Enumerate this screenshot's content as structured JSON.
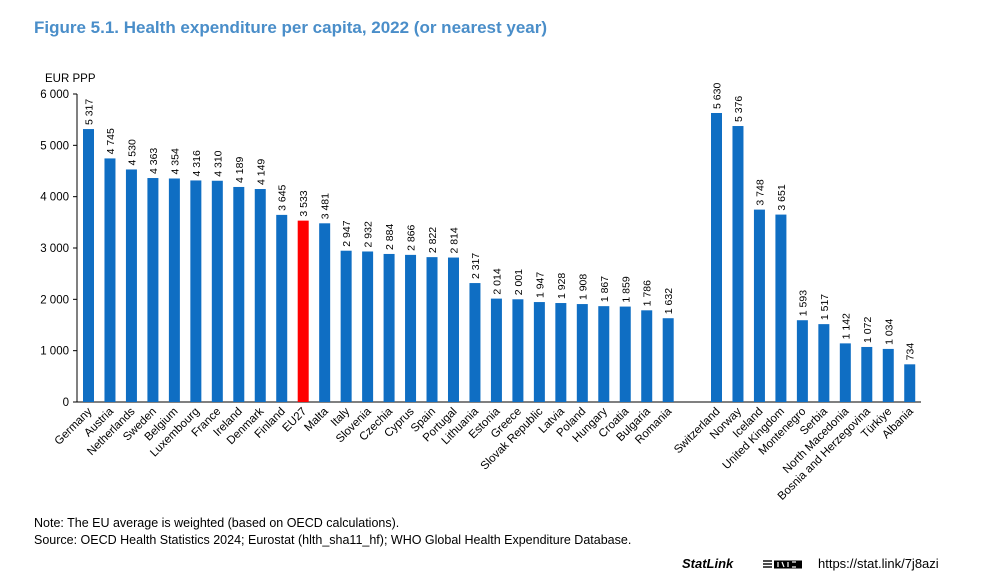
{
  "figure": {
    "title": "Figure 5.1. Health expenditure per capita, 2022 (or nearest year)",
    "note": "Note: The EU average is weighted (based on OECD calculations).",
    "source": "Source: OECD Health Statistics 2024; Eurostat (hlth_sha11_hf); WHO Global Health Expenditure Database.",
    "statlink_label": "StatLink",
    "statlink_url": "https://stat.link/7j8azi"
  },
  "chart_data": {
    "type": "bar",
    "title": "Figure 5.1. Health expenditure per capita, 2022 (or nearest year)",
    "ylabel": "EUR PPP",
    "ylim": [
      0,
      6000
    ],
    "yticks": [
      0,
      1000,
      2000,
      3000,
      4000,
      5000,
      6000
    ],
    "ytick_labels": [
      "0",
      "1 000",
      "2 000",
      "3 000",
      "4 000",
      "5 000",
      "6 000"
    ],
    "grid": false,
    "colors": {
      "bar": "#0f6ec3",
      "highlight": "#ff0000"
    },
    "highlight_category": "EU27",
    "groups": [
      {
        "categories": [
          "Germany",
          "Austria",
          "Netherlands",
          "Sweden",
          "Belgium",
          "Luxembourg",
          "France",
          "Ireland",
          "Denmark",
          "Finland",
          "EU27",
          "Malta",
          "Italy",
          "Slovenia",
          "Czechia",
          "Cyprus",
          "Spain",
          "Portugal",
          "Lithuania",
          "Estonia",
          "Greece",
          "Slovak Republic",
          "Latvia",
          "Poland",
          "Hungary",
          "Croatia",
          "Bulgaria",
          "Romania"
        ],
        "values": [
          5317,
          4745,
          4530,
          4363,
          4354,
          4316,
          4310,
          4189,
          4149,
          3645,
          3533,
          3481,
          2947,
          2932,
          2884,
          2866,
          2822,
          2814,
          2317,
          2014,
          2001,
          1947,
          1928,
          1908,
          1867,
          1859,
          1786,
          1632
        ],
        "labels": [
          "5 317",
          "4 745",
          "4 530",
          "4 363",
          "4 354",
          "4 316",
          "4 310",
          "4 189",
          "4 149",
          "3 645",
          "3 533",
          "3 481",
          "2 947",
          "2 932",
          "2 884",
          "2 866",
          "2 822",
          "2 814",
          "2 317",
          "2 014",
          "2 001",
          "1 947",
          "1 928",
          "1 908",
          "1 867",
          "1 859",
          "1 786",
          "1 632"
        ]
      },
      {
        "categories": [
          "Switzerland",
          "Norway",
          "Iceland",
          "United Kingdom",
          "Montenegro",
          "Serbia",
          "North Macedonia",
          "Bosnia and Herzegovina",
          "Türkiye",
          "Albania"
        ],
        "values": [
          5630,
          5376,
          3748,
          3651,
          1593,
          1517,
          1142,
          1072,
          1034,
          734
        ],
        "labels": [
          "5 630",
          "5 376",
          "3 748",
          "3 651",
          "1 593",
          "1 517",
          "1 142",
          "1 072",
          "1 034",
          "734"
        ]
      }
    ]
  }
}
